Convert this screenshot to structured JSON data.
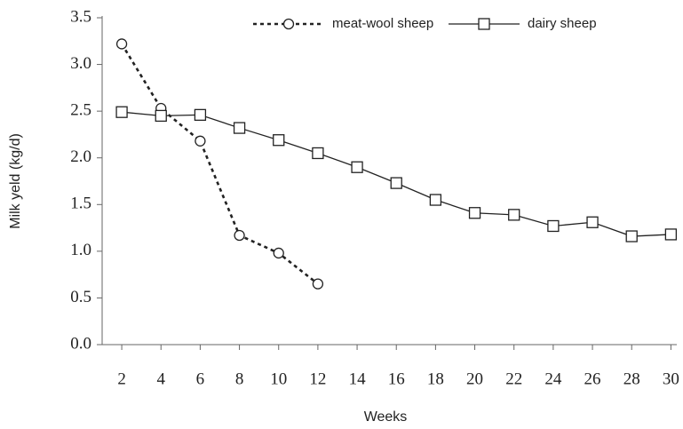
{
  "chart_data": {
    "type": "line",
    "xlabel": "Weeks",
    "ylabel": "Milk yeld (kg/d)",
    "series": [
      {
        "name": "meat-wool sheep",
        "color": "#222222",
        "linestyle": "dashed",
        "marker": "circle",
        "x": [
          2,
          4,
          6,
          8,
          10,
          12
        ],
        "values": [
          3.22,
          2.53,
          2.18,
          1.17,
          0.98,
          0.65
        ]
      },
      {
        "name": "dairy sheep",
        "color": "#222222",
        "linestyle": "solid",
        "marker": "square",
        "x": [
          2,
          4,
          6,
          8,
          10,
          12,
          14,
          16,
          18,
          20,
          22,
          24,
          26,
          28,
          30
        ],
        "values": [
          2.49,
          2.45,
          2.46,
          2.32,
          2.19,
          2.05,
          1.9,
          1.73,
          1.55,
          1.41,
          1.39,
          1.27,
          1.31,
          1.16,
          1.18
        ]
      }
    ],
    "xlim": [
      1,
      30.3
    ],
    "xticks": [
      2,
      4,
      6,
      8,
      10,
      12,
      14,
      16,
      18,
      20,
      22,
      24,
      26,
      28,
      30
    ],
    "ylim": [
      0,
      3.5
    ],
    "yticks": [
      {
        "value": 0,
        "label": "0.0"
      },
      0.5,
      {
        "value": 1,
        "label": "1.0"
      },
      1.5,
      {
        "value": 2,
        "label": "2.0"
      },
      2.5,
      {
        "value": 3,
        "label": "3.0"
      },
      3.5
    ],
    "grid": false,
    "legend": "top right"
  }
}
